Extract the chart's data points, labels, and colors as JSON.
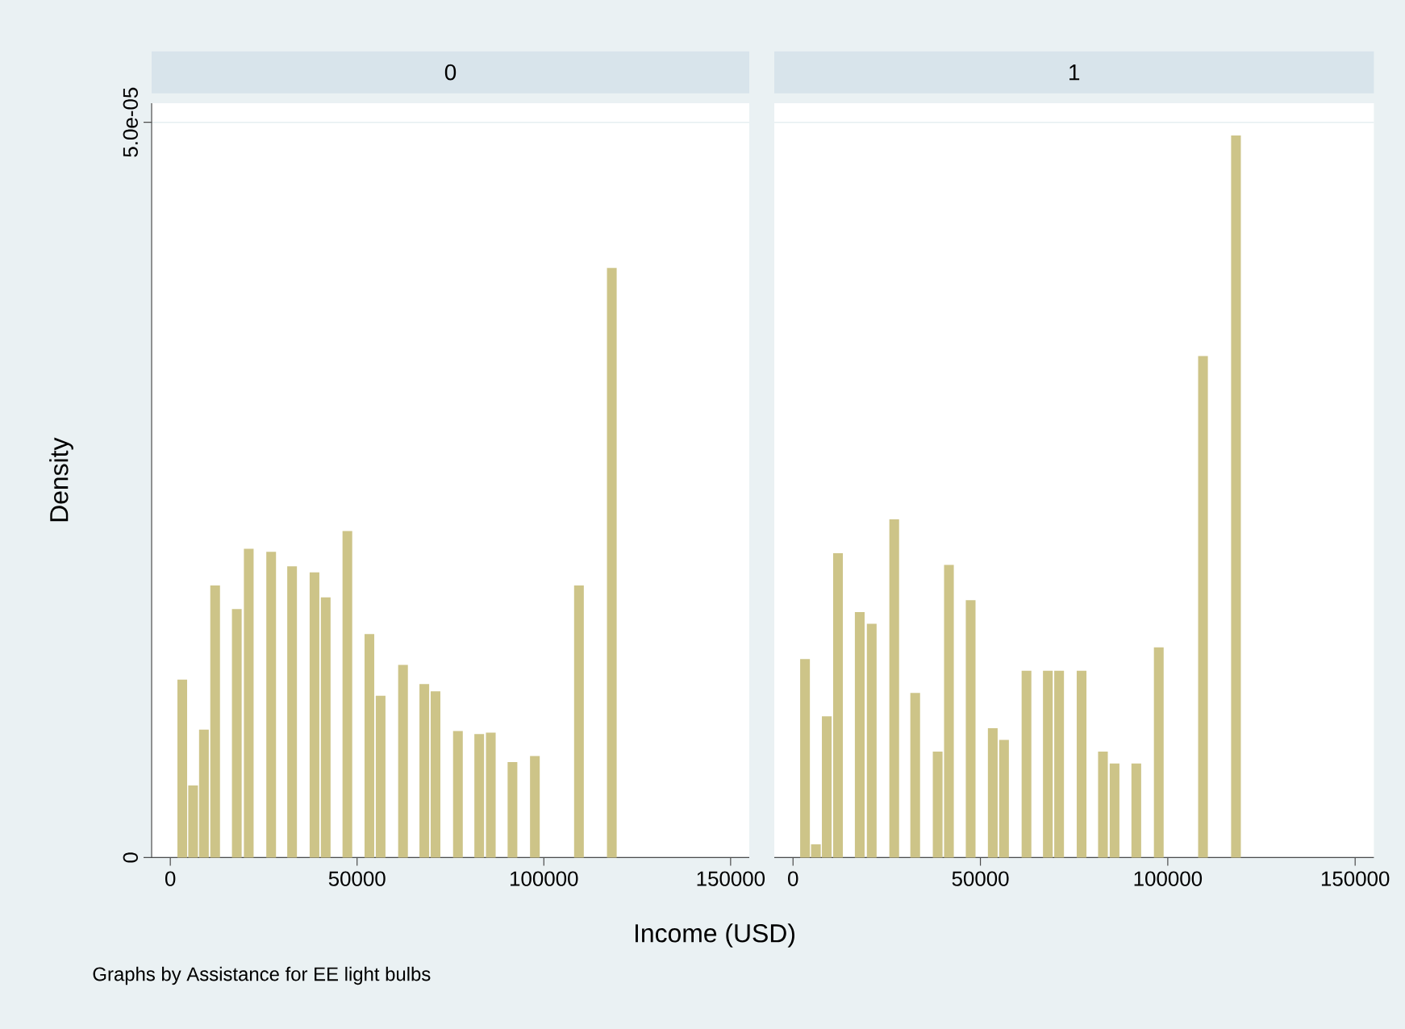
{
  "chart_data": [
    {
      "type": "bar",
      "title": "0",
      "ylabel": "Density",
      "xlabel": "Income (USD)",
      "annotations": [
        "Graphs by Assistance for EE light bulbs"
      ],
      "x": [
        3200,
        6100,
        9000,
        12000,
        17800,
        21000,
        27000,
        32600,
        38600,
        41600,
        47400,
        53300,
        56300,
        62300,
        68000,
        71000,
        77000,
        82700,
        85800,
        91600,
        97600,
        109400,
        118200
      ],
      "values": [
        1.21e-05,
        4.9e-06,
        8.7e-06,
        1.85e-05,
        1.69e-05,
        2.1e-05,
        2.08e-05,
        1.98e-05,
        1.94e-05,
        1.77e-05,
        2.22e-05,
        1.52e-05,
        1.1e-05,
        1.31e-05,
        1.18e-05,
        1.13e-05,
        8.6e-06,
        8.4e-06,
        8.5e-06,
        6.5e-06,
        6.9e-06,
        1.85e-05,
        4.01e-05
      ],
      "color": "#cdc488",
      "xlim": [
        -5000,
        155000
      ],
      "xticks": [
        0,
        50000,
        100000,
        150000
      ],
      "ylim": [
        0,
        5.13e-05
      ],
      "yticks": [
        0,
        {
          "value": 5e-05,
          "label": "5.0e-05"
        }
      ],
      "grid": "y"
    },
    {
      "type": "bar",
      "title": "1",
      "x": [
        3200,
        6100,
        9000,
        12000,
        17800,
        21000,
        27000,
        32600,
        38600,
        41600,
        47400,
        53300,
        56300,
        62300,
        68000,
        71000,
        77000,
        82700,
        85800,
        91600,
        97600,
        109400,
        118200
      ],
      "values": [
        1.35e-05,
        9e-07,
        9.6e-06,
        2.07e-05,
        1.67e-05,
        1.59e-05,
        2.3e-05,
        1.12e-05,
        7.2e-06,
        1.99e-05,
        1.75e-05,
        8.8e-06,
        8e-06,
        1.27e-05,
        1.27e-05,
        1.27e-05,
        1.27e-05,
        7.2e-06,
        6.4e-06,
        6.4e-06,
        1.43e-05,
        3.41e-05,
        4.91e-05
      ],
      "color": "#cdc488",
      "xlim": [
        -5000,
        155000
      ],
      "xticks": [
        0,
        50000,
        100000,
        150000
      ],
      "ylim": [
        0,
        5.13e-05
      ],
      "yticks": [
        0,
        5e-05
      ],
      "grid": "y",
      "tick_labels": "x"
    }
  ]
}
